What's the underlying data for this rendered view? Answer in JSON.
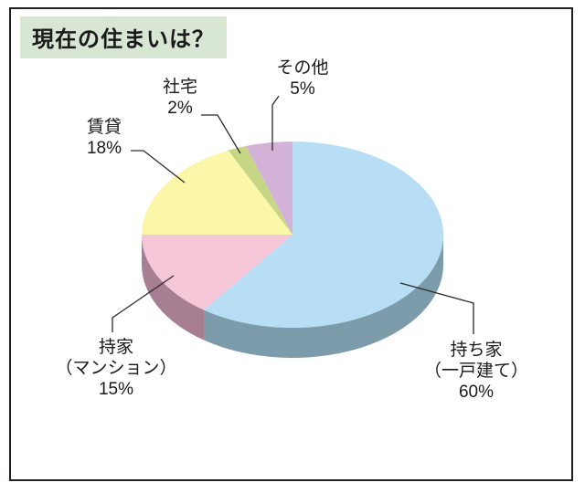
{
  "title": "現在の住まいは？",
  "colors": {
    "title_bg": "#d8e7d4",
    "frame_border": "#231f20",
    "leader_line": "#2e2a2b",
    "label_text": "#1a1a1a"
  },
  "chart_data": {
    "type": "pie",
    "style": "3d",
    "title": "現在の住まいは？",
    "unit": "%",
    "start_angle_deg": 0,
    "direction": "clockwise",
    "legend_position": "none",
    "slices": [
      {
        "key": "own-house",
        "label": "持ち家（一戸建て）",
        "value": 60,
        "color": "#b7def4",
        "side_color": "#7d9cab"
      },
      {
        "key": "own-condo",
        "label": "持家（マンション）",
        "value": 15,
        "color": "#f5c7d9",
        "side_color": "#a77e92"
      },
      {
        "key": "rental",
        "label": "賃貸",
        "value": 18,
        "color": "#fbf7a8",
        "side_color": "#c2bd7f"
      },
      {
        "key": "company-housing",
        "label": "社宅",
        "value": 2,
        "color": "#c6d685",
        "side_color": "#97a564"
      },
      {
        "key": "other",
        "label": "その他",
        "value": 5,
        "color": "#d3b2d8",
        "side_color": "#a287a7"
      }
    ],
    "callouts": [
      {
        "key": "other",
        "lines": [
          "その他",
          "5%"
        ]
      },
      {
        "key": "company-housing",
        "lines": [
          "社宅",
          "2%"
        ]
      },
      {
        "key": "rental",
        "lines": [
          "賃貸",
          "18%"
        ]
      },
      {
        "key": "own-condo",
        "lines": [
          "持家",
          "（マンション）",
          "15%"
        ]
      },
      {
        "key": "own-house",
        "lines": [
          "持ち家",
          "（一戸建て）",
          "60%"
        ]
      }
    ]
  }
}
